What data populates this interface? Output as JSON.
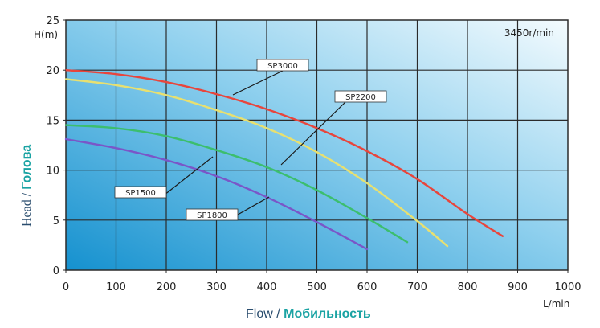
{
  "chart_data": {
    "type": "line",
    "speed_label": "3450r/min",
    "y_unit": "H(m)",
    "x_unit": "L/min",
    "x_title_en": "Flow",
    "x_title_sep": " / ",
    "x_title_ru": "Мобильность",
    "y_title_en": "Head",
    "y_title_sep": " / ",
    "y_title_ru": "Голова",
    "xlim": [
      0,
      1000
    ],
    "ylim": [
      0,
      25
    ],
    "xticks": [
      0,
      100,
      200,
      300,
      400,
      500,
      600,
      700,
      800,
      900,
      1000
    ],
    "yticks": [
      0,
      5,
      10,
      15,
      20,
      25
    ],
    "grid": true,
    "series": [
      {
        "name": "SP3000",
        "color": "#e8453c",
        "x": [
          0,
          100,
          200,
          300,
          400,
          500,
          600,
          700,
          800,
          870
        ],
        "y": [
          20,
          19.6,
          18.8,
          17.6,
          16.1,
          14.2,
          11.9,
          9.1,
          5.6,
          3.4
        ]
      },
      {
        "name": "SP2200",
        "color": "#e8e070",
        "x": [
          0,
          100,
          200,
          300,
          400,
          500,
          600,
          700,
          760
        ],
        "y": [
          19.1,
          18.5,
          17.5,
          16.0,
          14.2,
          11.8,
          8.7,
          4.9,
          2.4
        ]
      },
      {
        "name": "SP1500",
        "color": "#3cbe6e",
        "x": [
          0,
          100,
          200,
          300,
          400,
          500,
          600,
          680
        ],
        "y": [
          14.5,
          14.2,
          13.4,
          12.0,
          10.3,
          8.0,
          5.2,
          2.8
        ]
      },
      {
        "name": "SP1800",
        "color": "#7a56c8",
        "x": [
          0,
          100,
          200,
          300,
          400,
          500,
          600
        ],
        "y": [
          13.1,
          12.2,
          11.0,
          9.4,
          7.3,
          4.8,
          2.1
        ]
      }
    ]
  }
}
